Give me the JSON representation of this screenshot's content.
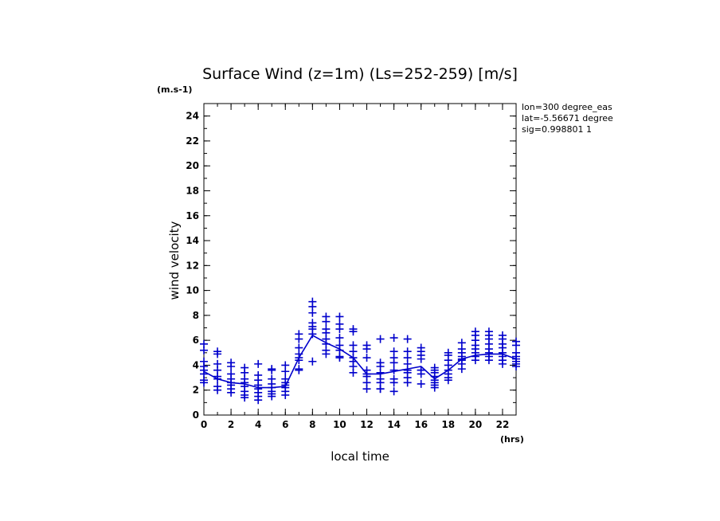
{
  "chart_data": {
    "type": "scatter",
    "title": "Surface Wind (z=1m) (Ls=252-259) [m/s]",
    "xlabel": "local time",
    "ylabel": "wind velocity",
    "x_unit": "(hrs)",
    "y_unit": "(m.s-1)",
    "xlim": [
      0,
      23
    ],
    "ylim": [
      0,
      25
    ],
    "xticks": [
      0,
      2,
      4,
      6,
      8,
      10,
      12,
      14,
      16,
      18,
      20,
      22
    ],
    "yticks": [
      0,
      2,
      4,
      6,
      8,
      10,
      12,
      14,
      16,
      18,
      20,
      22,
      24
    ],
    "grid": false,
    "marker_color": "#0000cc",
    "annotations": [
      "lon=300 degree_eas",
      "lat=-5.56671 degree",
      "sig=0.998801 1"
    ],
    "series": [
      {
        "marker": "+",
        "points": [
          {
            "x": 0,
            "y": [
              5.7,
              5.2,
              4.3,
              3.9,
              3.6,
              3.3,
              2.8,
              2.6
            ]
          },
          {
            "x": 1,
            "y": [
              5.1,
              4.9,
              4.1,
              3.6,
              3.1,
              2.9,
              2.3,
              2.0
            ]
          },
          {
            "x": 2,
            "y": [
              4.2,
              3.9,
              3.3,
              2.9,
              2.6,
              2.4,
              2.1,
              1.8
            ]
          },
          {
            "x": 3,
            "y": [
              3.8,
              3.4,
              2.9,
              2.6,
              2.3,
              1.9,
              1.6,
              1.4
            ]
          },
          {
            "x": 4,
            "y": [
              4.1,
              3.2,
              2.8,
              2.4,
              2.1,
              1.8,
              1.5,
              1.2
            ]
          },
          {
            "x": 5,
            "y": [
              3.7,
              3.6,
              2.9,
              2.5,
              2.2,
              1.9,
              1.7,
              1.5
            ]
          },
          {
            "x": 6,
            "y": [
              4.0,
              3.5,
              2.9,
              2.6,
              2.4,
              2.2,
              1.9,
              1.6
            ]
          },
          {
            "x": 7,
            "y": [
              6.5,
              6.1,
              5.4,
              4.9,
              4.6,
              4.4,
              3.7,
              3.6
            ]
          },
          {
            "x": 8,
            "y": [
              9.1,
              8.7,
              8.2,
              7.4,
              7.1,
              6.9,
              6.5,
              4.3
            ]
          },
          {
            "x": 9,
            "y": [
              7.9,
              7.5,
              6.9,
              6.6,
              6.1,
              5.7,
              5.2,
              4.9
            ]
          },
          {
            "x": 10,
            "y": [
              7.9,
              7.3,
              6.9,
              6.2,
              5.6,
              5.2,
              4.7,
              4.6
            ]
          },
          {
            "x": 11,
            "y": [
              6.9,
              6.7,
              5.6,
              5.1,
              4.6,
              4.3,
              3.9,
              3.4
            ]
          },
          {
            "x": 12,
            "y": [
              5.6,
              5.3,
              4.6,
              3.6,
              3.3,
              3.1,
              2.6,
              2.1
            ]
          },
          {
            "x": 13,
            "y": [
              6.1,
              4.2,
              3.9,
              3.4,
              2.9,
              2.6,
              2.1,
              2.1
            ]
          },
          {
            "x": 14,
            "y": [
              6.2,
              5.1,
              4.6,
              4.2,
              3.6,
              2.9,
              2.6,
              1.9
            ]
          },
          {
            "x": 15,
            "y": [
              6.1,
              5.1,
              4.6,
              4.1,
              3.6,
              3.4,
              3.0,
              2.6
            ]
          },
          {
            "x": 16,
            "y": [
              5.4,
              5.1,
              4.8,
              4.5,
              3.6,
              3.3,
              2.5,
              3.6
            ]
          },
          {
            "x": 17,
            "y": [
              3.8,
              3.6,
              3.4,
              3.1,
              2.8,
              2.6,
              2.4,
              2.2
            ]
          },
          {
            "x": 18,
            "y": [
              5.0,
              4.8,
              4.4,
              4.0,
              3.6,
              3.3,
              3.0,
              2.8
            ]
          },
          {
            "x": 19,
            "y": [
              5.8,
              5.3,
              5.0,
              4.7,
              4.5,
              4.4,
              4.1,
              3.7
            ]
          },
          {
            "x": 20,
            "y": [
              6.7,
              6.4,
              6.0,
              5.6,
              5.3,
              5.0,
              4.7,
              4.4
            ]
          },
          {
            "x": 21,
            "y": [
              6.7,
              6.4,
              6.1,
              5.7,
              5.3,
              5.0,
              4.7,
              4.4
            ]
          },
          {
            "x": 22,
            "y": [
              6.4,
              6.1,
              5.7,
              5.4,
              5.0,
              4.7,
              4.4,
              4.1
            ]
          },
          {
            "x": 23,
            "y": [
              5.9,
              5.6,
              5.0,
              4.7,
              4.5,
              4.3,
              4.1,
              3.9
            ]
          }
        ]
      },
      {
        "type": "line",
        "x": [
          0,
          1,
          2,
          3,
          4,
          5,
          6,
          7,
          8,
          9,
          10,
          11,
          12,
          13,
          14,
          15,
          16,
          17,
          18,
          19,
          20,
          21,
          22,
          23
        ],
        "values": [
          3.5,
          2.9,
          2.6,
          2.5,
          2.2,
          2.2,
          2.3,
          4.6,
          6.4,
          5.8,
          5.3,
          4.6,
          3.3,
          3.3,
          3.5,
          3.7,
          3.9,
          2.9,
          3.6,
          4.5,
          4.8,
          4.9,
          4.9,
          4.5
        ]
      }
    ]
  }
}
